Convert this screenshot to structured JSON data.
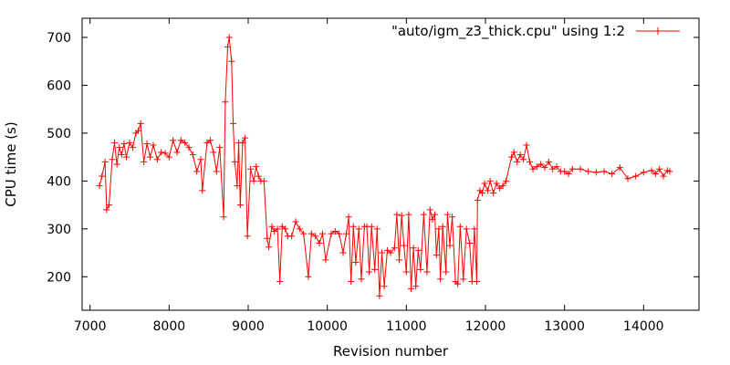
{
  "chart_data": {
    "type": "line",
    "title": "",
    "xlabel": "Revision number",
    "ylabel": "CPU time (s)",
    "xlim": [
      6900,
      14700
    ],
    "ylim": [
      130,
      740
    ],
    "xticks": [
      7000,
      8000,
      9000,
      10000,
      11000,
      12000,
      13000,
      14000
    ],
    "yticks": [
      200,
      300,
      400,
      500,
      600,
      700
    ],
    "grid": false,
    "legend_position": "top-right",
    "series_color": "#ff0000",
    "marker": "plus",
    "series": [
      {
        "name": "\"auto/igm_z3_thick.cpu\" using 1:2",
        "points": [
          [
            7120,
            390
          ],
          [
            7150,
            410
          ],
          [
            7190,
            440
          ],
          [
            7210,
            340
          ],
          [
            7240,
            350
          ],
          [
            7280,
            445
          ],
          [
            7310,
            480
          ],
          [
            7340,
            435
          ],
          [
            7370,
            470
          ],
          [
            7400,
            455
          ],
          [
            7430,
            478
          ],
          [
            7460,
            450
          ],
          [
            7500,
            480
          ],
          [
            7540,
            470
          ],
          [
            7580,
            500
          ],
          [
            7610,
            505
          ],
          [
            7640,
            520
          ],
          [
            7680,
            440
          ],
          [
            7720,
            478
          ],
          [
            7760,
            450
          ],
          [
            7800,
            475
          ],
          [
            7850,
            445
          ],
          [
            7900,
            460
          ],
          [
            7950,
            458
          ],
          [
            8000,
            450
          ],
          [
            8050,
            485
          ],
          [
            8100,
            460
          ],
          [
            8150,
            485
          ],
          [
            8200,
            480
          ],
          [
            8250,
            470
          ],
          [
            8300,
            455
          ],
          [
            8350,
            420
          ],
          [
            8400,
            445
          ],
          [
            8420,
            380
          ],
          [
            8480,
            480
          ],
          [
            8520,
            485
          ],
          [
            8560,
            460
          ],
          [
            8600,
            420
          ],
          [
            8640,
            470
          ],
          [
            8690,
            325
          ],
          [
            8710,
            565
          ],
          [
            8740,
            680
          ],
          [
            8760,
            700
          ],
          [
            8790,
            650
          ],
          [
            8810,
            520
          ],
          [
            8830,
            440
          ],
          [
            8860,
            390
          ],
          [
            8880,
            480
          ],
          [
            8900,
            350
          ],
          [
            8930,
            480
          ],
          [
            8960,
            490
          ],
          [
            8990,
            285
          ],
          [
            9030,
            425
          ],
          [
            9070,
            400
          ],
          [
            9100,
            430
          ],
          [
            9130,
            410
          ],
          [
            9160,
            400
          ],
          [
            9200,
            400
          ],
          [
            9240,
            280
          ],
          [
            9260,
            262
          ],
          [
            9300,
            305
          ],
          [
            9330,
            295
          ],
          [
            9370,
            300
          ],
          [
            9400,
            190
          ],
          [
            9430,
            305
          ],
          [
            9470,
            300
          ],
          [
            9500,
            285
          ],
          [
            9550,
            285
          ],
          [
            9600,
            315
          ],
          [
            9650,
            300
          ],
          [
            9700,
            290
          ],
          [
            9760,
            200
          ],
          [
            9800,
            290
          ],
          [
            9850,
            285
          ],
          [
            9900,
            270
          ],
          [
            9940,
            290
          ],
          [
            9980,
            235
          ],
          [
            10050,
            290
          ],
          [
            10100,
            295
          ],
          [
            10150,
            290
          ],
          [
            10200,
            250
          ],
          [
            10240,
            290
          ],
          [
            10270,
            325
          ],
          [
            10300,
            190
          ],
          [
            10330,
            305
          ],
          [
            10360,
            230
          ],
          [
            10400,
            300
          ],
          [
            10430,
            195
          ],
          [
            10470,
            305
          ],
          [
            10500,
            305
          ],
          [
            10530,
            210
          ],
          [
            10560,
            305
          ],
          [
            10600,
            215
          ],
          [
            10630,
            300
          ],
          [
            10660,
            160
          ],
          [
            10690,
            250
          ],
          [
            10720,
            180
          ],
          [
            10760,
            255
          ],
          [
            10800,
            250
          ],
          [
            10850,
            260
          ],
          [
            10880,
            330
          ],
          [
            10910,
            235
          ],
          [
            10940,
            328
          ],
          [
            10970,
            265
          ],
          [
            11000,
            210
          ],
          [
            11030,
            330
          ],
          [
            11060,
            175
          ],
          [
            11090,
            260
          ],
          [
            11120,
            180
          ],
          [
            11150,
            255
          ],
          [
            11180,
            215
          ],
          [
            11220,
            330
          ],
          [
            11260,
            210
          ],
          [
            11300,
            340
          ],
          [
            11330,
            320
          ],
          [
            11360,
            330
          ],
          [
            11380,
            245
          ],
          [
            11410,
            300
          ],
          [
            11430,
            195
          ],
          [
            11460,
            305
          ],
          [
            11500,
            210
          ],
          [
            11520,
            330
          ],
          [
            11550,
            265
          ],
          [
            11580,
            325
          ],
          [
            11620,
            190
          ],
          [
            11650,
            185
          ],
          [
            11680,
            305
          ],
          [
            11720,
            195
          ],
          [
            11760,
            300
          ],
          [
            11800,
            270
          ],
          [
            11830,
            190
          ],
          [
            11860,
            300
          ],
          [
            11890,
            190
          ],
          [
            11900,
            360
          ],
          [
            11930,
            380
          ],
          [
            11960,
            375
          ],
          [
            11990,
            395
          ],
          [
            12030,
            380
          ],
          [
            12060,
            400
          ],
          [
            12100,
            375
          ],
          [
            12140,
            395
          ],
          [
            12180,
            385
          ],
          [
            12220,
            390
          ],
          [
            12260,
            400
          ],
          [
            12330,
            450
          ],
          [
            12360,
            460
          ],
          [
            12400,
            440
          ],
          [
            12440,
            455
          ],
          [
            12480,
            445
          ],
          [
            12520,
            475
          ],
          [
            12560,
            440
          ],
          [
            12600,
            425
          ],
          [
            12650,
            430
          ],
          [
            12700,
            435
          ],
          [
            12750,
            428
          ],
          [
            12800,
            440
          ],
          [
            12850,
            425
          ],
          [
            12900,
            430
          ],
          [
            12950,
            420
          ],
          [
            13000,
            420
          ],
          [
            13050,
            415
          ],
          [
            13100,
            425
          ],
          [
            13200,
            425
          ],
          [
            13300,
            420
          ],
          [
            13400,
            418
          ],
          [
            13500,
            420
          ],
          [
            13600,
            415
          ],
          [
            13700,
            428
          ],
          [
            13800,
            405
          ],
          [
            13900,
            410
          ],
          [
            14000,
            418
          ],
          [
            14100,
            422
          ],
          [
            14150,
            415
          ],
          [
            14200,
            425
          ],
          [
            14250,
            410
          ],
          [
            14300,
            422
          ],
          [
            14330,
            420
          ]
        ]
      }
    ]
  }
}
